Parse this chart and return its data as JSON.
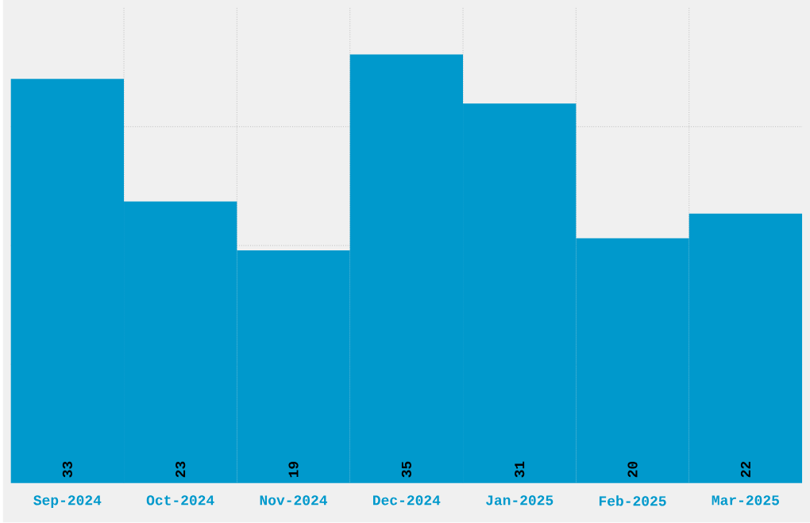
{
  "chart_data": {
    "type": "bar",
    "categories": [
      "Sep-2024",
      "Oct-2024",
      "Nov-2024",
      "Dec-2024",
      "Jan-2025",
      "Feb-2025",
      "Mar-2025"
    ],
    "values": [
      33,
      23,
      19,
      35,
      31,
      20,
      22
    ],
    "color": "#0099cc",
    "ylim": [
      0,
      38.8
    ],
    "yticks": [
      {
        "value": 9.7,
        "label": null
      },
      {
        "value": 19.4,
        "label": null
      },
      {
        "value": 29.1,
        "label": null
      }
    ],
    "grid": true,
    "data_labels": true
  }
}
